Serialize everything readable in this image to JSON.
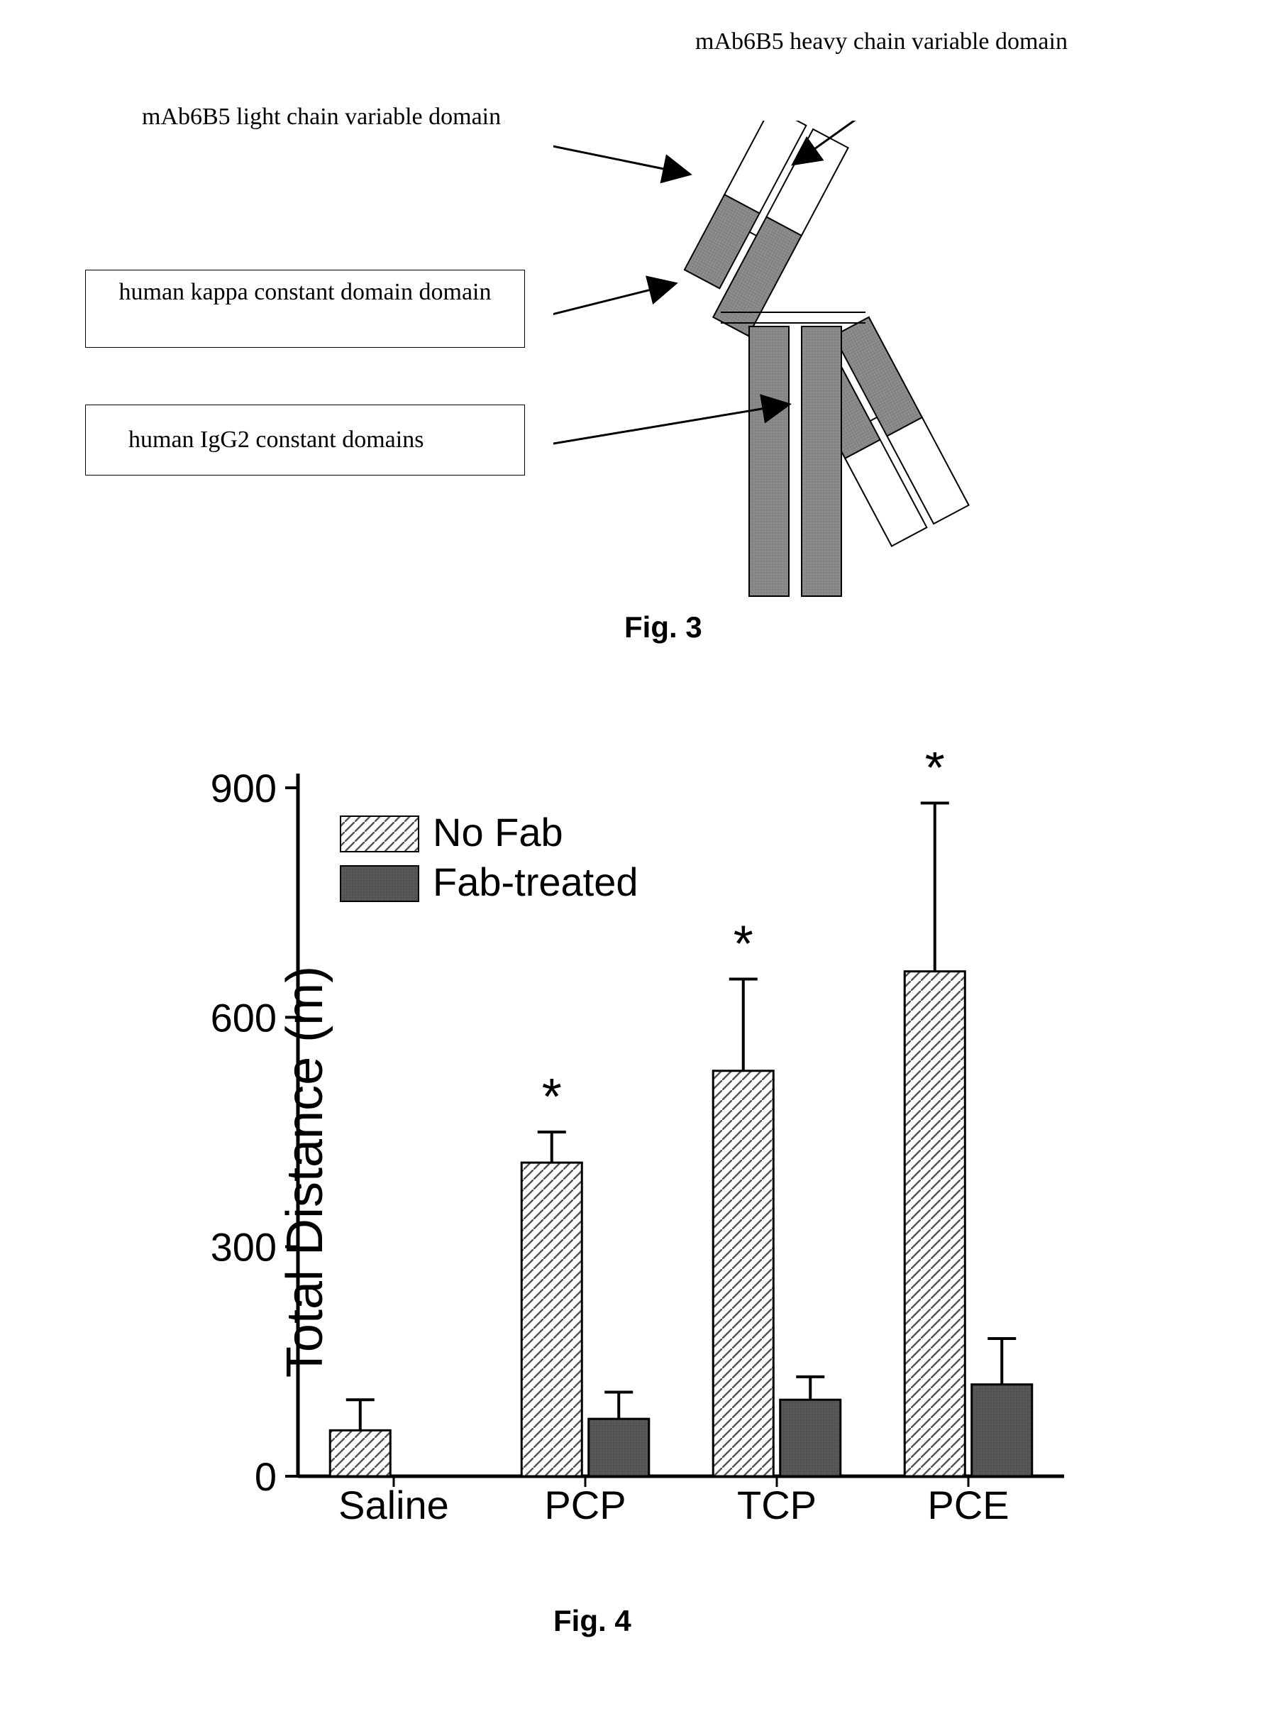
{
  "fig3": {
    "labels": {
      "heavy_chain": "mAb6B5 heavy chain variable domain",
      "light_chain": "mAb6B5 light chain variable domain",
      "kappa_constant": "human kappa constant domain domain",
      "igg2_constant": "human IgG2 constant domains"
    },
    "caption": "Fig. 3",
    "colors": {
      "variable_fill": "#ffffff",
      "constant_fill": "#888888",
      "stroke": "#000000"
    }
  },
  "fig4": {
    "caption": "Fig. 4",
    "chart": {
      "type": "bar",
      "ylabel": "Total Distance (m)",
      "categories": [
        "Saline",
        "PCP",
        "TCP",
        "PCE"
      ],
      "series": [
        {
          "name": "No Fab",
          "pattern": "hatch",
          "color": "#ffffff",
          "hatch_color": "#555555",
          "values": [
            60,
            410,
            530,
            660
          ],
          "errors": [
            40,
            40,
            120,
            220
          ],
          "significance": [
            false,
            true,
            true,
            true
          ]
        },
        {
          "name": "Fab-treated",
          "pattern": "solid",
          "color": "#555555",
          "values": [
            null,
            75,
            100,
            120
          ],
          "errors": [
            null,
            35,
            30,
            60
          ],
          "significance": [
            false,
            false,
            false,
            false
          ]
        }
      ],
      "ylim": [
        0,
        900
      ],
      "yticks": [
        0,
        300,
        600,
        900
      ],
      "label_fontsize": 72,
      "tick_fontsize": 56,
      "legend_fontsize": 56,
      "background_color": "#ffffff",
      "axis_color": "#000000",
      "bar_stroke": "#000000",
      "bar_width": 0.35,
      "significance_marker": "*"
    }
  }
}
